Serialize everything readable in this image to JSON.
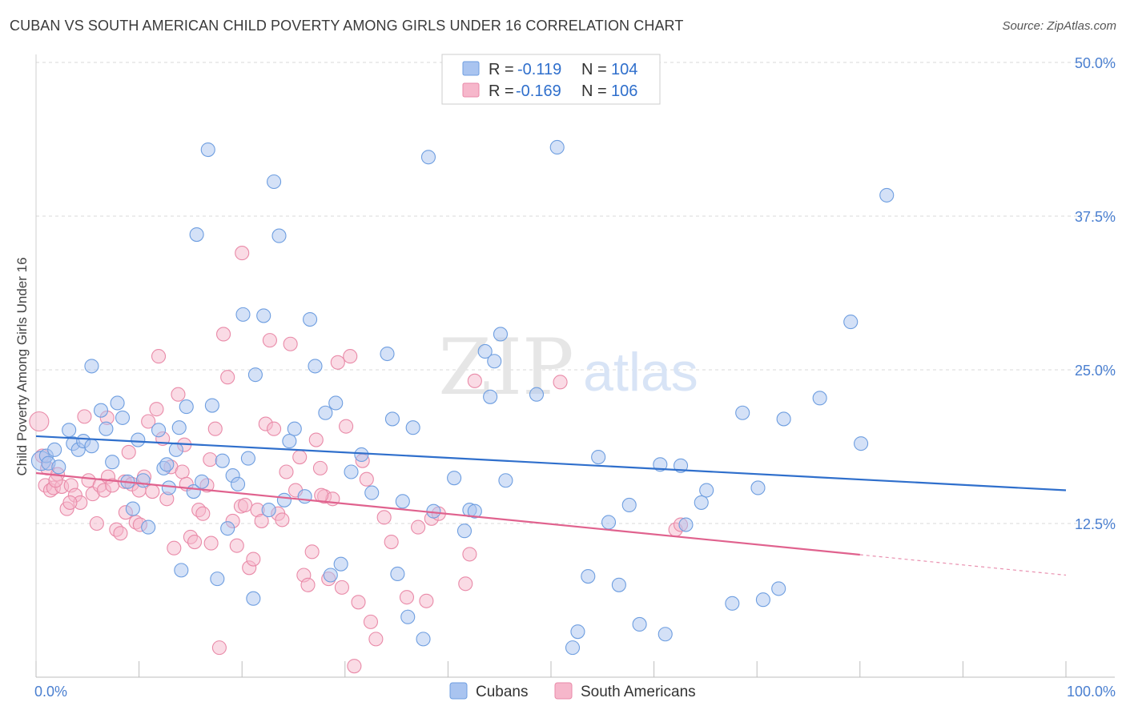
{
  "header": {
    "title": "CUBAN VS SOUTH AMERICAN CHILD POVERTY AMONG GIRLS UNDER 16 CORRELATION CHART",
    "source": "Source: ZipAtlas.com"
  },
  "watermark": {
    "zip": "ZIP",
    "atlas": "atlas"
  },
  "legend": {
    "rows": [
      {
        "r_label": "R =",
        "r_value": "-0.119",
        "n_label": "N =",
        "n_value": "104",
        "color": "#a9c4f0",
        "stroke": "#6e9ee0"
      },
      {
        "r_label": "R =",
        "r_value": "-0.169",
        "n_label": "N =",
        "n_value": "106",
        "color": "#f6b7cb",
        "stroke": "#e98aa8"
      }
    ]
  },
  "bottom_legend": [
    {
      "label": "Cubans",
      "color": "#a9c4f0",
      "stroke": "#6e9ee0"
    },
    {
      "label": "South Americans",
      "color": "#f6b7cb",
      "stroke": "#e98aa8"
    }
  ],
  "colors": {
    "blue_fill": "#a9c4f0",
    "blue_stroke": "#6e9ee0",
    "blue_line": "#2f6fcc",
    "pink_fill": "#f6b7cb",
    "pink_stroke": "#e98aa8",
    "pink_line": "#e0628e",
    "tick_label": "#4a7fd0",
    "grid": "#d8d8d8"
  },
  "chart_data": {
    "type": "scatter",
    "title": "CUBAN VS SOUTH AMERICAN CHILD POVERTY AMONG GIRLS UNDER 16 CORRELATION CHART",
    "xlabel": "",
    "ylabel": "Child Poverty Among Girls Under 16",
    "xlim": [
      0,
      100
    ],
    "ylim": [
      0,
      50
    ],
    "x_tick_labels": [
      {
        "value": 0,
        "label": "0.0%"
      },
      {
        "value": 100,
        "label": "100.0%"
      }
    ],
    "y_tick_labels": [
      {
        "value": 12.5,
        "label": "12.5%"
      },
      {
        "value": 25,
        "label": "25.0%"
      },
      {
        "value": 37.5,
        "label": "37.5%"
      },
      {
        "value": 50,
        "label": "50.0%"
      }
    ],
    "grid": true,
    "legend_position": "top-center",
    "series": [
      {
        "name": "Cubans",
        "r": -0.119,
        "n": 104,
        "trend": {
          "x": [
            0,
            100
          ],
          "y": [
            19.6,
            15.2
          ],
          "dashed_from": null
        },
        "points": [
          [
            0.5,
            17.6
          ],
          [
            1.0,
            18.0
          ],
          [
            1.2,
            17.4
          ],
          [
            1.8,
            18.5
          ],
          [
            2.2,
            17.1
          ],
          [
            3.2,
            20.1
          ],
          [
            3.6,
            19.0
          ],
          [
            4.1,
            18.5
          ],
          [
            4.6,
            19.2
          ],
          [
            5.4,
            18.8
          ],
          [
            5.4,
            25.3
          ],
          [
            6.3,
            21.7
          ],
          [
            6.8,
            20.2
          ],
          [
            7.4,
            17.5
          ],
          [
            7.9,
            22.3
          ],
          [
            8.4,
            21.1
          ],
          [
            8.9,
            15.9
          ],
          [
            9.4,
            13.7
          ],
          [
            9.9,
            19.3
          ],
          [
            10.4,
            16.0
          ],
          [
            10.9,
            12.2
          ],
          [
            11.9,
            20.1
          ],
          [
            12.4,
            17.0
          ],
          [
            12.7,
            17.3
          ],
          [
            12.9,
            15.4
          ],
          [
            13.6,
            18.5
          ],
          [
            13.9,
            20.3
          ],
          [
            14.1,
            8.7
          ],
          [
            14.6,
            22.0
          ],
          [
            15.3,
            15.1
          ],
          [
            15.6,
            36.0
          ],
          [
            16.1,
            15.9
          ],
          [
            16.7,
            42.9
          ],
          [
            17.1,
            22.1
          ],
          [
            17.6,
            8.0
          ],
          [
            18.1,
            17.6
          ],
          [
            18.6,
            12.1
          ],
          [
            19.1,
            16.4
          ],
          [
            19.6,
            15.7
          ],
          [
            20.1,
            29.5
          ],
          [
            20.6,
            17.8
          ],
          [
            21.1,
            6.4
          ],
          [
            21.3,
            24.6
          ],
          [
            22.1,
            29.4
          ],
          [
            23.1,
            40.3
          ],
          [
            23.6,
            35.9
          ],
          [
            24.1,
            14.4
          ],
          [
            24.6,
            19.2
          ],
          [
            25.1,
            20.2
          ],
          [
            26.1,
            14.7
          ],
          [
            26.6,
            29.1
          ],
          [
            27.1,
            25.3
          ],
          [
            28.1,
            21.5
          ],
          [
            28.6,
            8.3
          ],
          [
            29.1,
            22.3
          ],
          [
            29.6,
            9.2
          ],
          [
            30.6,
            16.7
          ],
          [
            31.6,
            18.1
          ],
          [
            32.6,
            15.0
          ],
          [
            34.1,
            26.3
          ],
          [
            34.6,
            21.0
          ],
          [
            35.1,
            8.4
          ],
          [
            35.6,
            14.3
          ],
          [
            36.1,
            4.9
          ],
          [
            36.6,
            20.3
          ],
          [
            37.6,
            3.1
          ],
          [
            38.1,
            42.3
          ],
          [
            38.6,
            13.5
          ],
          [
            40.6,
            16.2
          ],
          [
            41.6,
            11.9
          ],
          [
            42.1,
            13.6
          ],
          [
            42.6,
            13.5
          ],
          [
            43.6,
            26.5
          ],
          [
            44.1,
            22.8
          ],
          [
            44.5,
            25.7
          ],
          [
            45.1,
            27.9
          ],
          [
            45.6,
            16.0
          ],
          [
            48.6,
            23.0
          ],
          [
            50.6,
            43.1
          ],
          [
            52.1,
            2.4
          ],
          [
            52.6,
            3.7
          ],
          [
            53.6,
            8.2
          ],
          [
            54.6,
            17.9
          ],
          [
            55.6,
            12.6
          ],
          [
            56.6,
            7.5
          ],
          [
            57.6,
            14.0
          ],
          [
            58.6,
            4.3
          ],
          [
            60.6,
            17.3
          ],
          [
            61.1,
            3.5
          ],
          [
            62.6,
            17.2
          ],
          [
            63.1,
            12.4
          ],
          [
            64.6,
            14.2
          ],
          [
            65.1,
            15.2
          ],
          [
            67.6,
            6.0
          ],
          [
            68.6,
            21.5
          ],
          [
            70.1,
            15.4
          ],
          [
            70.6,
            6.3
          ],
          [
            72.1,
            7.2
          ],
          [
            72.6,
            21.0
          ],
          [
            76.1,
            22.7
          ],
          [
            79.1,
            28.9
          ],
          [
            80.1,
            19.0
          ],
          [
            82.6,
            39.2
          ],
          [
            22.6,
            13.6
          ]
        ]
      },
      {
        "name": "South Americans",
        "r": -0.169,
        "n": 106,
        "trend": {
          "x": [
            0,
            100
          ],
          "y": [
            16.6,
            8.3
          ],
          "dashed_from": 80
        },
        "points": [
          [
            0.3,
            20.8
          ],
          [
            0.6,
            18.0
          ],
          [
            0.9,
            15.6
          ],
          [
            1.1,
            17.0
          ],
          [
            1.4,
            15.2
          ],
          [
            1.7,
            15.4
          ],
          [
            2.1,
            16.5
          ],
          [
            2.5,
            15.5
          ],
          [
            3.0,
            13.7
          ],
          [
            3.4,
            15.6
          ],
          [
            3.8,
            14.8
          ],
          [
            4.3,
            14.2
          ],
          [
            4.7,
            21.2
          ],
          [
            5.1,
            16.0
          ],
          [
            5.5,
            14.9
          ],
          [
            5.9,
            12.5
          ],
          [
            6.2,
            15.6
          ],
          [
            6.6,
            15.2
          ],
          [
            7.0,
            16.3
          ],
          [
            7.4,
            15.6
          ],
          [
            7.8,
            12.0
          ],
          [
            8.2,
            11.7
          ],
          [
            8.6,
            15.9
          ],
          [
            9.0,
            18.3
          ],
          [
            9.3,
            15.7
          ],
          [
            9.7,
            12.6
          ],
          [
            10.1,
            12.4
          ],
          [
            10.5,
            16.3
          ],
          [
            10.9,
            20.8
          ],
          [
            11.3,
            15.1
          ],
          [
            11.7,
            21.8
          ],
          [
            11.9,
            26.1
          ],
          [
            12.3,
            19.4
          ],
          [
            12.7,
            14.5
          ],
          [
            13.1,
            17.1
          ],
          [
            13.4,
            10.5
          ],
          [
            13.8,
            23.0
          ],
          [
            14.2,
            16.7
          ],
          [
            14.6,
            15.7
          ],
          [
            15.0,
            11.4
          ],
          [
            15.4,
            11.0
          ],
          [
            15.8,
            13.6
          ],
          [
            16.2,
            13.3
          ],
          [
            16.6,
            15.6
          ],
          [
            17.0,
            10.9
          ],
          [
            17.4,
            20.2
          ],
          [
            17.8,
            2.4
          ],
          [
            18.2,
            27.9
          ],
          [
            18.6,
            24.4
          ],
          [
            19.1,
            12.7
          ],
          [
            19.5,
            10.7
          ],
          [
            19.9,
            13.9
          ],
          [
            20.3,
            14.0
          ],
          [
            20.7,
            8.9
          ],
          [
            21.1,
            9.6
          ],
          [
            21.5,
            13.6
          ],
          [
            21.9,
            12.7
          ],
          [
            22.3,
            20.6
          ],
          [
            22.7,
            27.4
          ],
          [
            23.1,
            20.2
          ],
          [
            23.5,
            13.3
          ],
          [
            23.9,
            12.8
          ],
          [
            24.3,
            16.7
          ],
          [
            24.7,
            27.1
          ],
          [
            25.2,
            15.2
          ],
          [
            25.6,
            17.9
          ],
          [
            26.0,
            8.3
          ],
          [
            26.4,
            7.5
          ],
          [
            26.8,
            10.2
          ],
          [
            27.2,
            19.3
          ],
          [
            27.6,
            17.0
          ],
          [
            28.0,
            14.7
          ],
          [
            28.4,
            8.0
          ],
          [
            28.8,
            14.5
          ],
          [
            29.3,
            25.6
          ],
          [
            29.7,
            7.3
          ],
          [
            30.1,
            20.4
          ],
          [
            30.5,
            26.1
          ],
          [
            30.9,
            0.9
          ],
          [
            31.3,
            6.1
          ],
          [
            31.7,
            17.6
          ],
          [
            32.1,
            16.1
          ],
          [
            32.5,
            4.5
          ],
          [
            33.0,
            3.1
          ],
          [
            37.1,
            12.2
          ],
          [
            37.9,
            6.2
          ],
          [
            38.4,
            12.9
          ],
          [
            39.1,
            13.3
          ],
          [
            41.7,
            7.6
          ],
          [
            42.1,
            10.0
          ],
          [
            42.6,
            24.1
          ],
          [
            50.9,
            24.0
          ],
          [
            62.1,
            12.0
          ],
          [
            62.6,
            12.4
          ],
          [
            34.5,
            11.0
          ],
          [
            36.0,
            6.5
          ],
          [
            3.3,
            14.2
          ],
          [
            8.7,
            13.4
          ],
          [
            16.9,
            17.7
          ],
          [
            20.0,
            34.5
          ],
          [
            14.4,
            18.9
          ],
          [
            1.9,
            16.0
          ],
          [
            6.9,
            21.1
          ],
          [
            10.0,
            15.2
          ],
          [
            27.7,
            14.8
          ],
          [
            33.8,
            13.0
          ]
        ]
      }
    ]
  }
}
